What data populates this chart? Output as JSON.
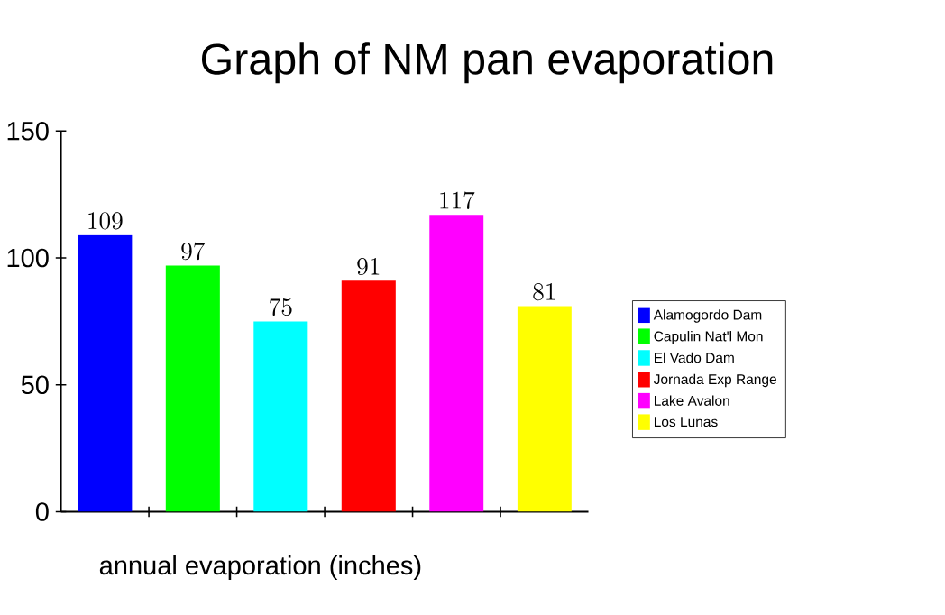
{
  "chart_data": {
    "type": "bar",
    "title": "Graph of NM pan evaporation",
    "xlabel": "annual evaporation (inches)",
    "categories": [
      null,
      null,
      null,
      null,
      null,
      null
    ],
    "series": [
      {
        "name": "Alamogordo Dam",
        "color": "#0000ff",
        "values": [
          109,
          null,
          null,
          null,
          null,
          null
        ]
      },
      {
        "name": "Capulin Nat'l Mon",
        "color": "#00ff00",
        "values": [
          null,
          97,
          null,
          null,
          null,
          null
        ]
      },
      {
        "name": "El Vado Dam",
        "color": "#00ffff",
        "values": [
          null,
          null,
          75,
          null,
          null,
          null
        ]
      },
      {
        "name": "Jornada Exp Range",
        "color": "#ff0000",
        "values": [
          null,
          null,
          null,
          91,
          null,
          null
        ]
      },
      {
        "name": "Lake Avalon",
        "color": "#ff00ff",
        "values": [
          null,
          null,
          null,
          null,
          117,
          null
        ]
      },
      {
        "name": "Los Lunas",
        "color": "#ffff00",
        "values": [
          null,
          null,
          null,
          null,
          null,
          81
        ]
      }
    ],
    "ylim": [
      0,
      150
    ],
    "yticks": [
      0,
      50,
      100,
      150
    ],
    "tick_labels": "y",
    "data_labels": true,
    "legend": "right"
  }
}
